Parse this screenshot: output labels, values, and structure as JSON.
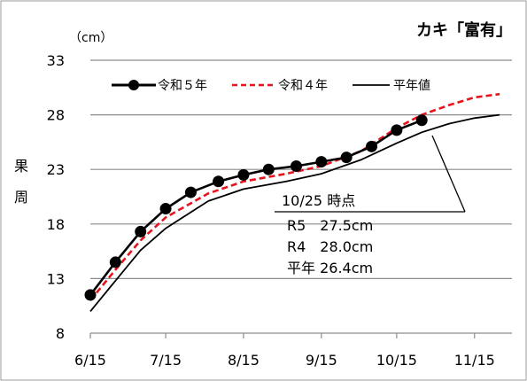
{
  "chart_data": {
    "type": "line",
    "title": "カキ「富有」",
    "unit_label": "（cm）",
    "ylabel_chars": [
      "果",
      "周"
    ],
    "xlabel": "",
    "x_ticks": [
      "6/15",
      "7/15",
      "8/15",
      "9/15",
      "10/15",
      "11/15"
    ],
    "y_ticks": [
      8,
      13,
      18,
      23,
      28,
      33
    ],
    "ylim": [
      8,
      33
    ],
    "xlim": [
      "6/15",
      "11/25"
    ],
    "grid": "horizontal",
    "legend_position": "top-left",
    "series": [
      {
        "name": "令和５年",
        "style": "solid-markers",
        "color": "#000000",
        "points": [
          [
            "6/15",
            11.5
          ],
          [
            "6/25",
            14.5
          ],
          [
            "7/5",
            17.3
          ],
          [
            "7/15",
            19.4
          ],
          [
            "7/25",
            20.9
          ],
          [
            "8/5",
            21.9
          ],
          [
            "8/15",
            22.5
          ],
          [
            "8/25",
            23.0
          ],
          [
            "9/5",
            23.3
          ],
          [
            "9/15",
            23.7
          ],
          [
            "9/25",
            24.1
          ],
          [
            "10/5",
            25.1
          ],
          [
            "10/15",
            26.6
          ],
          [
            "10/25",
            27.5
          ]
        ]
      },
      {
        "name": "令和４年",
        "style": "dashed",
        "color": "#e8141c",
        "points": [
          [
            "6/15",
            11.0
          ],
          [
            "6/25",
            13.8
          ],
          [
            "7/5",
            16.5
          ],
          [
            "7/15",
            18.6
          ],
          [
            "8/1",
            20.8
          ],
          [
            "8/15",
            21.9
          ],
          [
            "9/1",
            22.6
          ],
          [
            "9/15",
            23.3
          ],
          [
            "10/1",
            24.7
          ],
          [
            "10/15",
            26.8
          ],
          [
            "10/25",
            28.0
          ],
          [
            "11/5",
            28.9
          ],
          [
            "11/15",
            29.6
          ],
          [
            "11/25",
            29.9
          ]
        ]
      },
      {
        "name": "平年値",
        "style": "solid",
        "color": "#000000",
        "points": [
          [
            "6/15",
            10.0
          ],
          [
            "6/25",
            12.8
          ],
          [
            "7/5",
            15.6
          ],
          [
            "7/15",
            17.6
          ],
          [
            "8/1",
            20.1
          ],
          [
            "8/15",
            21.2
          ],
          [
            "9/1",
            21.9
          ],
          [
            "9/15",
            22.6
          ],
          [
            "10/1",
            23.9
          ],
          [
            "10/15",
            25.4
          ],
          [
            "10/25",
            26.4
          ],
          [
            "11/5",
            27.2
          ],
          [
            "11/15",
            27.7
          ],
          [
            "11/25",
            28.0
          ]
        ]
      }
    ],
    "annotation": {
      "header": "10/25 時点",
      "rows": [
        "R5　27.5cm",
        "R4　28.0cm",
        "平年 26.4cm"
      ]
    }
  }
}
